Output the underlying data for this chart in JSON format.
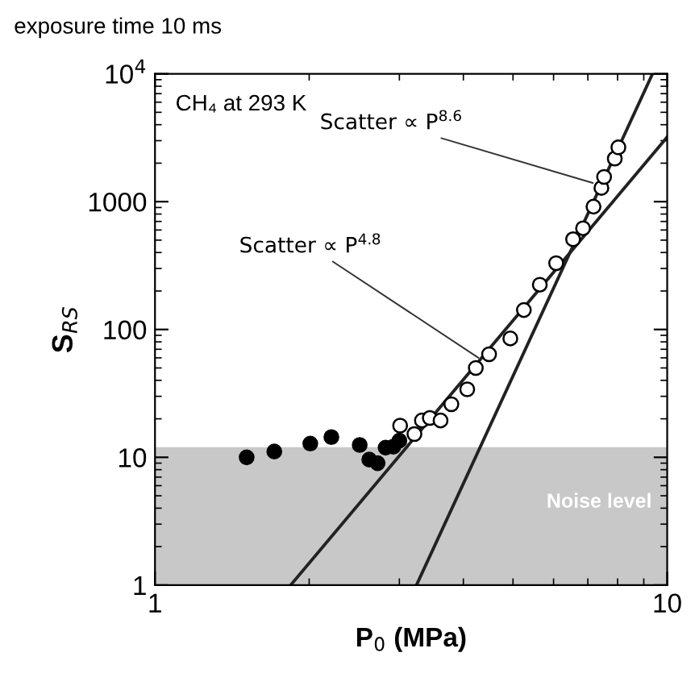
{
  "chart_data": {
    "type": "scatter",
    "title": "exposure time 10 ms",
    "xlabel": "P$_{0}$ (MPa)",
    "ylabel": "S$_{RS}$",
    "log": "xy",
    "xlim": [
      1,
      10
    ],
    "ylim": [
      1,
      10000
    ],
    "xticks": [
      1,
      10
    ],
    "yticks": [
      1,
      10,
      100,
      1000,
      {
        "value": 10000,
        "label": "10$^{4}$"
      }
    ],
    "grid": false,
    "legend": false,
    "series": [
      {
        "marker": "circle",
        "color": "#000000",
        "x": [
          1.51,
          1.71,
          2.01,
          2.21,
          2.51,
          2.62,
          2.72,
          2.82,
          2.92,
          3.0
        ],
        "values": [
          10,
          11.1,
          12.8,
          14.4,
          12.5,
          9.6,
          9.0,
          11.9,
          12.1,
          13.5
        ]
      },
      {
        "marker": "circle",
        "color": "#ffffff",
        "x": [
          3.01,
          3.21,
          3.32,
          3.44,
          3.61,
          3.79,
          4.07,
          4.23,
          4.49,
          4.94,
          5.25,
          5.64,
          6.07,
          6.55,
          6.85,
          7.18,
          7.44,
          7.53,
          7.9,
          8.03
        ],
        "values": [
          17.7,
          15.2,
          19.4,
          20.3,
          19.4,
          26,
          34,
          50,
          64,
          85,
          142,
          224,
          330,
          508,
          619,
          913,
          1280,
          1560,
          2170,
          2660
        ]
      },
      {
        "type": "line",
        "color": "#222222",
        "x": [
          1.84,
          10
        ],
        "values": [
          1,
          3200
        ]
      },
      {
        "type": "line",
        "color": "#222222",
        "x": [
          3.24,
          9.36
        ],
        "values": [
          1,
          10000
        ]
      }
    ],
    "bands": [
      {
        "axis": "y",
        "from": 1,
        "to": 12,
        "label": "Noise level",
        "color": "#c8c8c8"
      }
    ],
    "annotations": [
      "CH₄ at 293 K",
      {
        "text": "Scatter ∝ P$^{8.6}$",
        "x": 7.16,
        "y": 1400
      },
      {
        "text": "Scatter ∝ P$^{4.8}$",
        "x": 4.28,
        "y": 60
      }
    ]
  }
}
